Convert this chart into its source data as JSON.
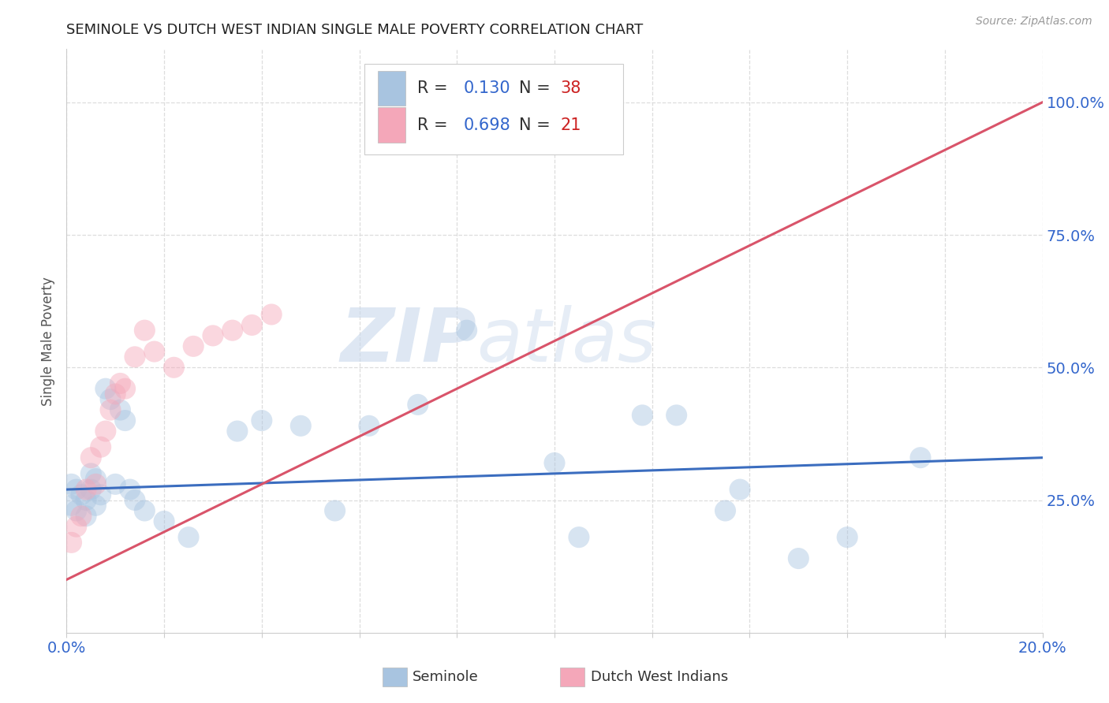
{
  "title": "SEMINOLE VS DUTCH WEST INDIAN SINGLE MALE POVERTY CORRELATION CHART",
  "source": "Source: ZipAtlas.com",
  "ylabel": "Single Male Poverty",
  "right_ytick_labels": [
    "100.0%",
    "75.0%",
    "50.0%",
    "25.0%"
  ],
  "right_ytick_values": [
    1.0,
    0.75,
    0.5,
    0.25
  ],
  "xlim": [
    0.0,
    0.2
  ],
  "ylim": [
    0.0,
    1.1
  ],
  "seminole_R": 0.13,
  "seminole_N": 38,
  "dutch_R": 0.698,
  "dutch_N": 21,
  "seminole_color": "#a8c4e0",
  "dutch_color": "#f4a7b9",
  "trendline_blue": "#3b6dbf",
  "trendline_pink": "#d9546a",
  "watermark_zip": "ZIP",
  "watermark_atlas": "atlas",
  "legend_label1": "Seminole",
  "legend_label2": "Dutch West Indians",
  "seminole_x": [
    0.001,
    0.001,
    0.002,
    0.002,
    0.003,
    0.004,
    0.004,
    0.005,
    0.005,
    0.006,
    0.006,
    0.007,
    0.008,
    0.009,
    0.01,
    0.011,
    0.012,
    0.013,
    0.014,
    0.016,
    0.02,
    0.025,
    0.035,
    0.04,
    0.048,
    0.055,
    0.062,
    0.072,
    0.082,
    0.1,
    0.105,
    0.118,
    0.125,
    0.135,
    0.138,
    0.15,
    0.16,
    0.175
  ],
  "seminole_y": [
    0.28,
    0.24,
    0.27,
    0.23,
    0.26,
    0.22,
    0.25,
    0.3,
    0.27,
    0.29,
    0.24,
    0.26,
    0.46,
    0.44,
    0.28,
    0.42,
    0.4,
    0.27,
    0.25,
    0.23,
    0.21,
    0.18,
    0.38,
    0.4,
    0.39,
    0.23,
    0.39,
    0.43,
    0.57,
    0.32,
    0.18,
    0.41,
    0.41,
    0.23,
    0.27,
    0.14,
    0.18,
    0.33
  ],
  "dutch_x": [
    0.001,
    0.002,
    0.003,
    0.004,
    0.005,
    0.006,
    0.007,
    0.008,
    0.009,
    0.01,
    0.011,
    0.012,
    0.014,
    0.016,
    0.018,
    0.022,
    0.026,
    0.03,
    0.034,
    0.038,
    0.042
  ],
  "dutch_y": [
    0.17,
    0.2,
    0.22,
    0.27,
    0.33,
    0.28,
    0.35,
    0.38,
    0.42,
    0.45,
    0.47,
    0.46,
    0.52,
    0.57,
    0.53,
    0.5,
    0.54,
    0.56,
    0.57,
    0.58,
    0.6
  ],
  "dot_size": 380,
  "dot_alpha": 0.45
}
